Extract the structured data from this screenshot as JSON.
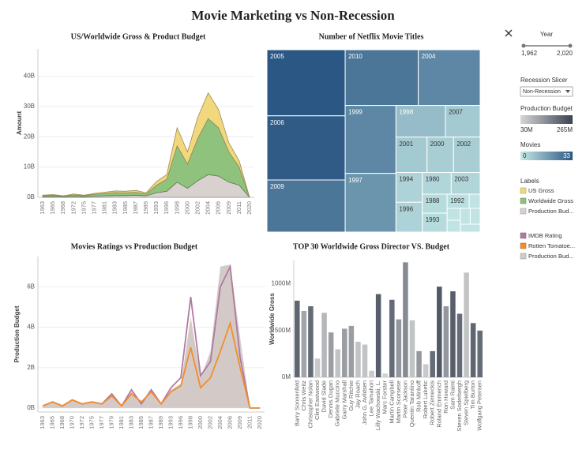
{
  "title": "Movie Marketing vs Non-Recession",
  "chart_data": [
    {
      "type": "area",
      "stacked": true,
      "title": "US/Worldwide Gross & Product Budget",
      "y_label": "Amount",
      "grid": true,
      "categories": [
        "1963",
        "1965",
        "1968",
        "1972",
        "1975",
        "1977",
        "1981",
        "1983",
        "1985",
        "1987",
        "1989",
        "1993",
        "1996",
        "1998",
        "2000",
        "2002",
        "2004",
        "2006",
        "2009",
        "2011",
        "2020"
      ],
      "series": [
        {
          "name": "US Gross",
          "color": "#f1d77e",
          "values": [
            0.2,
            0.2,
            0.1,
            0.3,
            0.2,
            0.3,
            0.4,
            0.5,
            0.5,
            0.6,
            0.4,
            1.2,
            1.5,
            6,
            4,
            7,
            8.5,
            6,
            3,
            2,
            0
          ]
        },
        {
          "name": "Worldwide Gross",
          "color": "#8fc27c",
          "values": [
            0.3,
            0.4,
            0.2,
            0.5,
            0.3,
            0.6,
            0.8,
            1,
            0.9,
            1,
            0.6,
            2.5,
            4,
            12,
            8,
            14,
            18.5,
            16,
            10,
            6,
            0
          ]
        },
        {
          "name": "Production Bud...",
          "color": "#d9d1ce",
          "values": [
            0.2,
            0.3,
            0.2,
            0.3,
            0.2,
            0.4,
            0.5,
            0.6,
            0.6,
            0.7,
            0.5,
            1.5,
            2,
            5,
            3,
            5.5,
            7.5,
            7,
            5,
            4,
            0
          ]
        }
      ],
      "ylim": [
        0,
        49
      ],
      "yticks": [
        {
          "value": 0,
          "label": "0B"
        },
        {
          "value": 10,
          "label": "10B"
        },
        {
          "value": 20,
          "label": "20B"
        },
        {
          "value": 30,
          "label": "30B"
        },
        {
          "value": 40,
          "label": "40B"
        }
      ]
    },
    {
      "type": "treemap",
      "title": "Number of Netflix Movie Titles",
      "categories": [
        "2005",
        "2006",
        "2009",
        "2010",
        "2004",
        "1999",
        "1997",
        "1998",
        "2007",
        "2001",
        "2000",
        "2002",
        "1994",
        "1996",
        "1980",
        "2003",
        "1988",
        "1993",
        "1992",
        null,
        null,
        null,
        null,
        null,
        null
      ],
      "values": [
        33,
        32,
        26,
        26,
        22,
        22,
        19,
        10,
        7,
        7,
        6,
        6,
        5,
        5,
        4,
        4,
        3,
        3,
        2,
        1,
        1,
        1,
        1,
        1,
        1
      ],
      "color_scale": {
        "title": "Movies",
        "min": 0,
        "max": 33,
        "colors": [
          "#c4e8e6",
          "#2a5783"
        ]
      }
    },
    {
      "type": "area",
      "stacked": false,
      "title": "Movies Ratings vs Production Budget",
      "y_label": "Production Budget",
      "grid": true,
      "categories": [
        "1963",
        "1965",
        "1968",
        "1970",
        "1972",
        "1975",
        "1977",
        "1979",
        "1981",
        "1983",
        "1985",
        "1987",
        "1989",
        "1993",
        "1996",
        "1998",
        "2000",
        "2002",
        "2004",
        "2006",
        "2009",
        "2011",
        "2020"
      ],
      "series": [
        {
          "name": "IMDB Rating",
          "color": "#b07aa1",
          "mark": "line",
          "values": [
            0.1,
            0.3,
            0.1,
            0.4,
            0.2,
            0.3,
            0.2,
            0.7,
            0.1,
            0.9,
            0.2,
            0.9,
            0.2,
            1,
            1.5,
            5.5,
            1.6,
            2.3,
            6,
            7,
            2.5,
            0,
            0
          ]
        },
        {
          "name": "Rotten Tomatoe...",
          "color": "#f28e2b",
          "mark": "line",
          "values": [
            0.1,
            0.3,
            0.1,
            0.4,
            0.2,
            0.3,
            0.2,
            0.6,
            0.1,
            0.7,
            0.3,
            0.8,
            0.2,
            0.8,
            1.1,
            3,
            1,
            1.5,
            2.8,
            4.2,
            2,
            0,
            0
          ]
        },
        {
          "name": "Production Bud...",
          "color": "#d3cac7",
          "mark": "area",
          "values": [
            0.1,
            0.3,
            0.1,
            0.4,
            0.2,
            0.3,
            0.2,
            0.6,
            0.1,
            0.8,
            0.3,
            0.8,
            0.2,
            0.9,
            1.2,
            4.5,
            1.5,
            2.8,
            7,
            7.1,
            3.5,
            0,
            0
          ]
        }
      ],
      "ylim": [
        -0.2,
        7.5
      ],
      "yticks": [
        {
          "value": 0,
          "label": "0B"
        },
        {
          "value": 2,
          "label": "2B"
        },
        {
          "value": 4,
          "label": "4B"
        },
        {
          "value": 6,
          "label": "6B"
        }
      ]
    },
    {
      "type": "bar",
      "title": "TOP 30 Worldwide Gross Director VS. Budget",
      "y_label": "Worldwide Gross",
      "grid": false,
      "categories": [
        "Barry Sonnenfeld",
        "Chris Weitz",
        "Christopher Nolan",
        "Clint Eastwood",
        "David Slade",
        "Dennis Dugan",
        "Gabriele Muccino",
        "Garry Marshall",
        "Guy Ritchie",
        "Jay Roach",
        "John G. Avildsen",
        "Lee Tamahori",
        "Lilly Wachowski, L.",
        "Marc Forster",
        "Martin Campbell",
        "Martin Scorsese",
        "Peter Jackson",
        "Quentin Tarantino",
        "Rob Minkoff",
        "Robert Luketic",
        "Robert Zemeckis",
        "Roland Emmerich",
        "Ron Howard",
        "Sam Raimi",
        "Steven Soderbergh",
        "Steven Spielberg",
        "Tim Burton",
        "Wolfgang Petersen"
      ],
      "values": [
        820,
        710,
        760,
        200,
        690,
        480,
        300,
        520,
        550,
        380,
        350,
        70,
        890,
        40,
        830,
        620,
        1230,
        610,
        280,
        140,
        280,
        970,
        760,
        920,
        680,
        1120,
        580,
        500
      ],
      "budgets": [
        210,
        110,
        200,
        50,
        80,
        120,
        60,
        120,
        120,
        60,
        60,
        50,
        220,
        40,
        200,
        130,
        150,
        60,
        130,
        50,
        200,
        230,
        130,
        220,
        200,
        60,
        210,
        200
      ],
      "color_scale": {
        "title": "Production Budget",
        "min": {
          "value": 30,
          "label": "30M"
        },
        "max": {
          "value": 265,
          "label": "265M"
        },
        "colors": [
          "#d6d6d6",
          "#3a4352"
        ]
      },
      "ylim": [
        0,
        1250
      ],
      "yticks": [
        {
          "value": 0,
          "label": "0M"
        },
        {
          "value": 500,
          "label": "500M"
        },
        {
          "value": 1000,
          "label": "1000M"
        }
      ]
    }
  ],
  "sidebar": {
    "year": {
      "title": "Year",
      "min": {
        "value": 1962,
        "label": "1,962"
      },
      "max": {
        "value": 2020,
        "label": "2,020"
      }
    },
    "recession_slicer": {
      "title": "Recession Slicer",
      "selected": "Non-Recession"
    },
    "labels_title": "Labels"
  }
}
